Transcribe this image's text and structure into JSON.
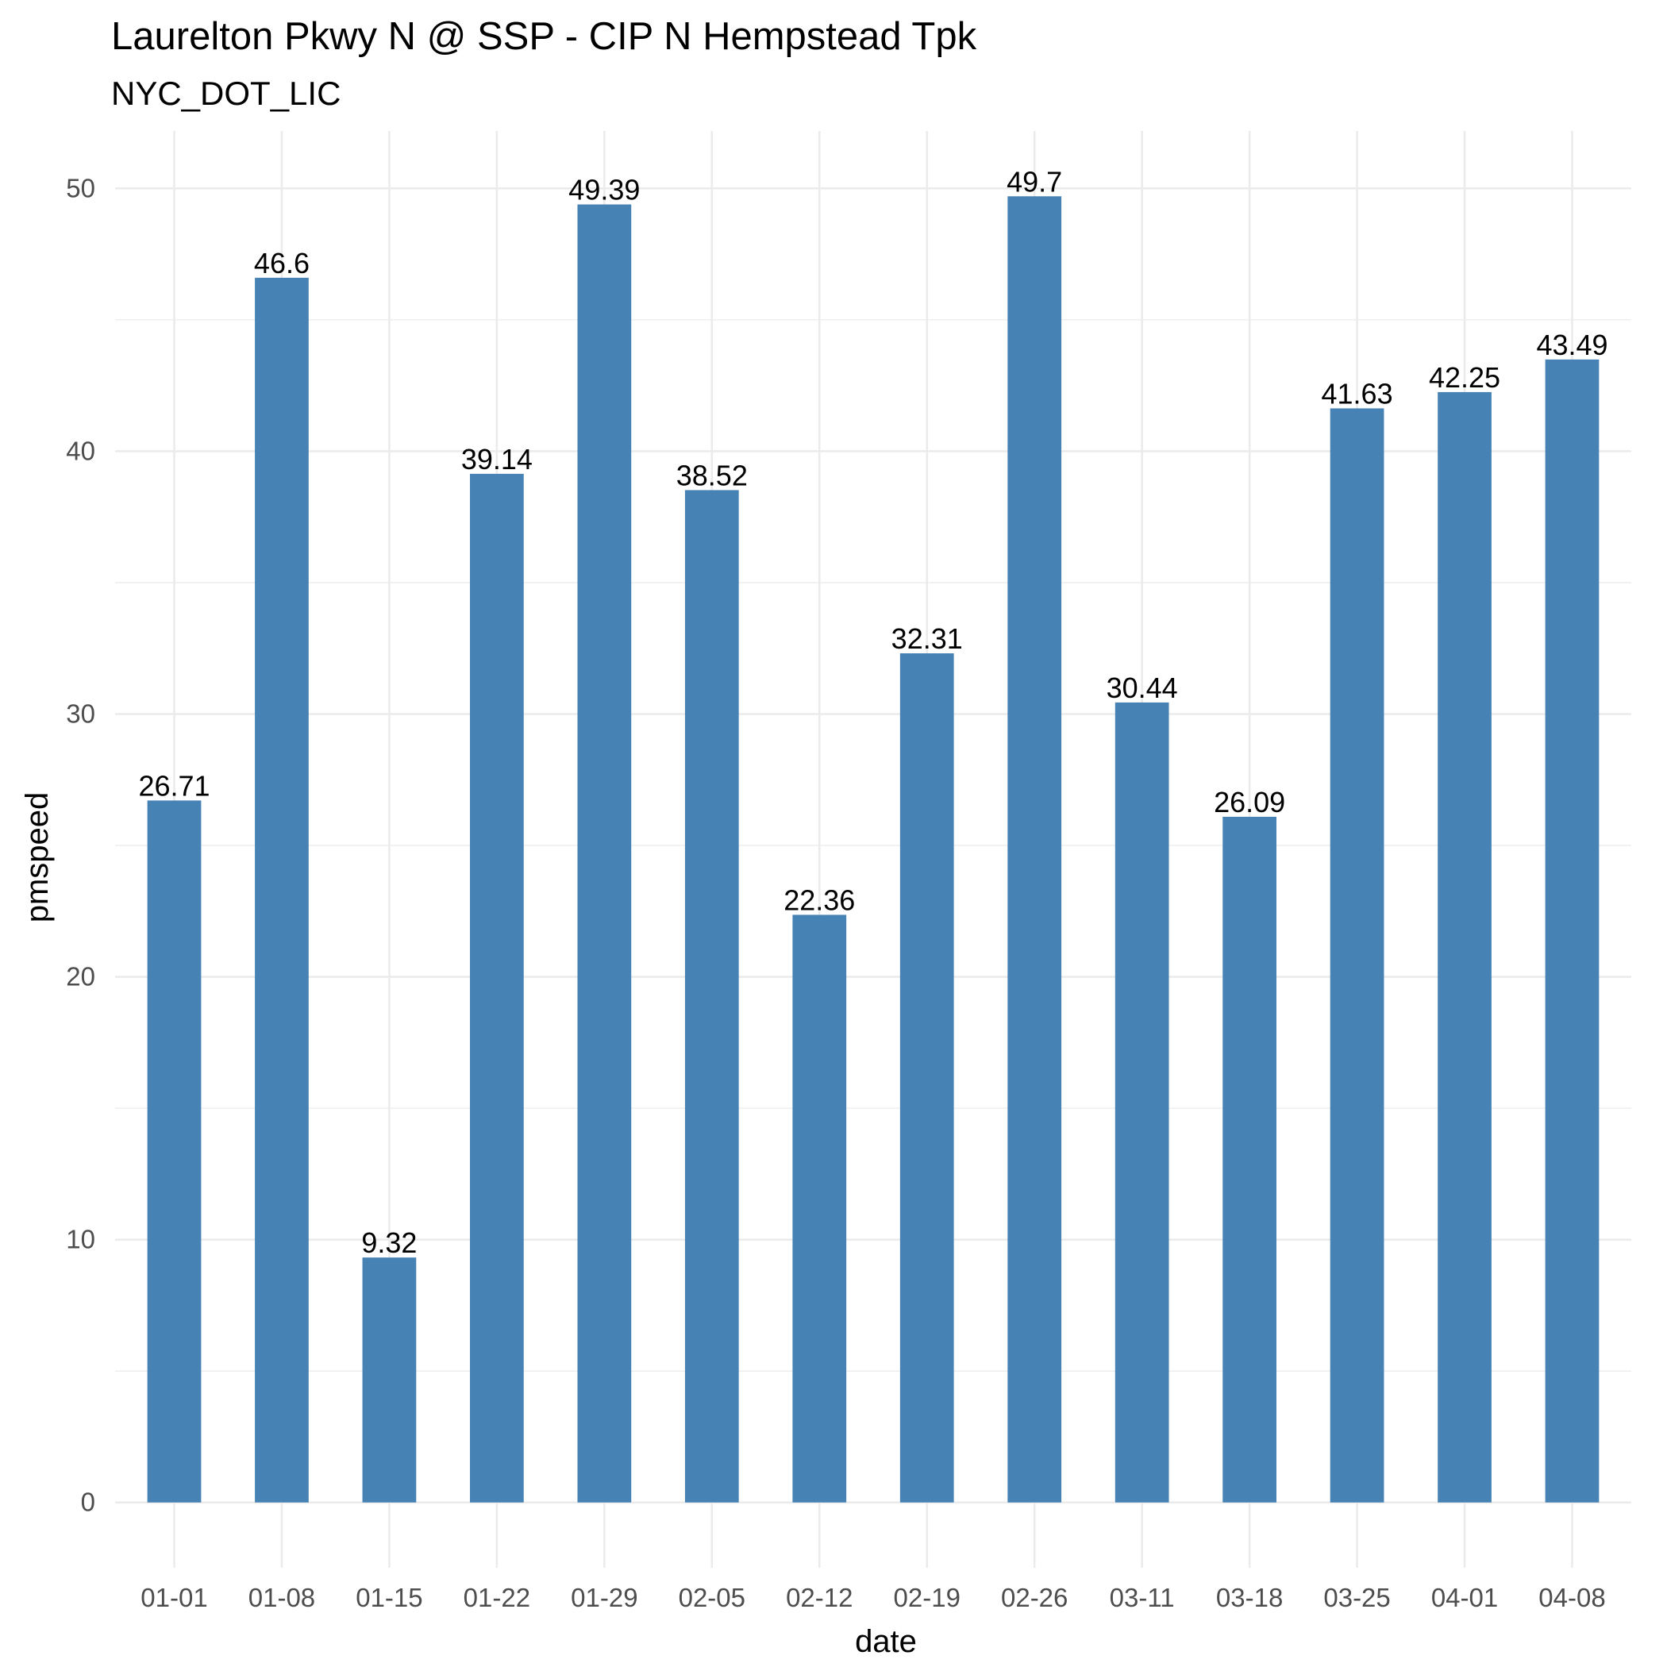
{
  "chart_data": {
    "type": "bar",
    "title": "Laurelton Pkwy N @ SSP - CIP N Hempstead Tpk",
    "subtitle": "NYC_DOT_LIC",
    "xlabel": "date",
    "ylabel": "pmspeed",
    "categories": [
      "01-01",
      "01-08",
      "01-15",
      "01-22",
      "01-29",
      "02-05",
      "02-12",
      "02-19",
      "02-26",
      "03-11",
      "03-18",
      "03-25",
      "04-01",
      "04-08"
    ],
    "values": [
      26.71,
      46.6,
      9.32,
      39.14,
      49.39,
      38.52,
      22.36,
      32.31,
      49.7,
      30.44,
      26.09,
      41.63,
      42.25,
      43.49
    ],
    "data_labels": [
      "26.71",
      "46.6",
      "9.32",
      "39.14",
      "49.39",
      "38.52",
      "22.36",
      "32.31",
      "49.7",
      "30.44",
      "26.09",
      "41.63",
      "42.25",
      "43.49"
    ],
    "yticks": [
      0,
      10,
      20,
      30,
      40,
      50
    ],
    "ylim": [
      -2.485,
      52.185
    ],
    "grid": true,
    "legend": "none",
    "bar_color": "#4682B4"
  }
}
